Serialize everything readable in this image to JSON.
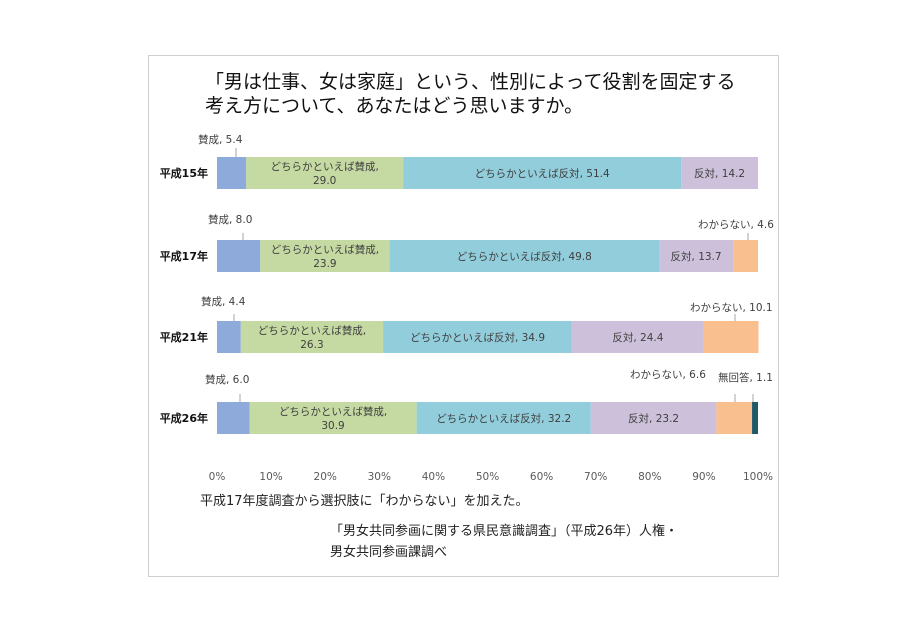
{
  "chart_data": {
    "type": "bar",
    "orientation": "horizontal",
    "stacked": true,
    "title": [
      "「男は仕事、女は家庭」という、性別によって役割を固定する",
      "考え方について、あなたはどう思いますか。"
    ],
    "categories": [
      "平成15年",
      "平成17年",
      "平成21年",
      "平成26年"
    ],
    "xlim": [
      0,
      100
    ],
    "x_ticks": [
      "0%",
      "10%",
      "20%",
      "30%",
      "40%",
      "50%",
      "60%",
      "70%",
      "80%",
      "90%",
      "100%"
    ],
    "grid": false,
    "series": [
      {
        "name": "賛成",
        "color": "#8eaadb",
        "values": [
          5.4,
          8.0,
          4.4,
          6.0
        ]
      },
      {
        "name": "どちらかといえば賛成",
        "color": "#c5d9a2",
        "values": [
          29.0,
          23.9,
          26.3,
          30.9
        ]
      },
      {
        "name": "どちらかといえば反対",
        "color": "#92cddc",
        "values": [
          51.4,
          49.8,
          34.9,
          32.2
        ]
      },
      {
        "name": "反対",
        "color": "#ccc0da",
        "values": [
          14.2,
          13.7,
          24.4,
          23.2
        ]
      },
      {
        "name": "わからない",
        "color": "#fabf8f",
        "values": [
          null,
          4.6,
          10.1,
          6.6
        ]
      },
      {
        "name": "無回答",
        "color": "#215967",
        "values": [
          null,
          null,
          null,
          1.1
        ]
      }
    ],
    "data_labels": [
      [
        "賛成, 5.4",
        "どちらかといえば賛成,|29.0",
        "どちらかといえば反対, 51.4",
        "反対, 14.2",
        "",
        ""
      ],
      [
        "賛成, 8.0",
        "どちらかといえば賛成,|23.9",
        "どちらかといえば反対, 49.8",
        "反対, 13.7",
        "わからない, 4.6",
        ""
      ],
      [
        "賛成, 4.4",
        "どちらかといえば賛成,|26.3",
        "どちらかといえば反対, 34.9",
        "反対, 24.4",
        "わからない, 10.1",
        ""
      ],
      [
        "賛成, 6.0",
        "どちらかといえば賛成,|30.9",
        "どちらかといえば反対, 32.2",
        "反対, 23.2",
        "わからない, 6.6",
        "無回答, 1.1"
      ]
    ]
  },
  "note": "平成17年度調査から選択肢に「わからない」を加えた。",
  "source": [
    "「男女共同参画に関する県民意識調査」（平成26年）人権・",
    "男女共同参画課調べ"
  ]
}
